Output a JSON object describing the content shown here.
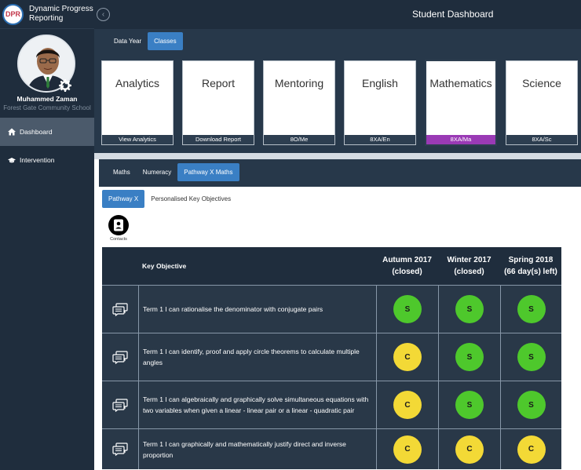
{
  "app": {
    "logo_text": "DPR",
    "name_line1": "Dynamic Progress",
    "name_line2": "Reporting"
  },
  "header": {
    "title": "Student Dashboard",
    "collapse_icon": "chevron-left-icon"
  },
  "profile": {
    "name": "Muhammed Zaman",
    "school": "Forest Gate Community School"
  },
  "sidebar": {
    "items": [
      {
        "label": "Dashboard",
        "icon": "home-icon",
        "active": true
      },
      {
        "label": "Intervention",
        "icon": "graduation-cap-icon",
        "active": false
      }
    ]
  },
  "year_tabs": [
    {
      "label": "Data Year",
      "active": false
    },
    {
      "label": "Classes",
      "active": true
    }
  ],
  "class_cards": [
    {
      "subject": "Analytics",
      "footer": "View Analytics",
      "active": false
    },
    {
      "subject": "Report",
      "footer": "Download Report",
      "active": false
    },
    {
      "subject": "Mentoring",
      "footer": "8O/Me",
      "active": false
    },
    {
      "subject": "English",
      "footer": "8XA/En",
      "active": false
    },
    {
      "subject": "Mathematics",
      "footer": "8XA/Ma",
      "active": true
    },
    {
      "subject": "Science",
      "footer": "8XA/Sc",
      "active": false
    }
  ],
  "maths_tabs": [
    {
      "label": "Maths",
      "active": false
    },
    {
      "label": "Numeracy",
      "active": false
    },
    {
      "label": "Pathway X Maths",
      "active": true
    }
  ],
  "sub_tabs": [
    {
      "label": "Pathway X",
      "active": true
    },
    {
      "label": "Personalised Key Objectives",
      "active": false
    }
  ],
  "contacts": {
    "label": "Contacts",
    "icon": "contacts-icon"
  },
  "table": {
    "header": {
      "objective": "Key Objective",
      "terms": [
        {
          "line1": "Autumn 2017",
          "line2": "(closed)"
        },
        {
          "line1": "Winter 2017",
          "line2": "(closed)"
        },
        {
          "line1": "Spring 2018",
          "line2": "(66 day(s) left)"
        }
      ]
    },
    "rows": [
      {
        "text": "Term 1 I can rationalise the denominator with conjugate pairs",
        "grades": [
          "S",
          "S",
          "S"
        ]
      },
      {
        "text": "Term 1 I can identify, proof and apply circle theorems to calculate multiple angles",
        "grades": [
          "C",
          "S",
          "S"
        ]
      },
      {
        "text": "Term 1 I can algebraically and graphically solve simultaneous equations with two variables when given a linear - linear pair or a linear - quadratic pair",
        "grades": [
          "C",
          "S",
          "S"
        ]
      },
      {
        "text": "Term 1 I can graphically and mathematically justify direct and inverse proportion",
        "grades": [
          "C",
          "C",
          "C"
        ]
      }
    ]
  },
  "colors": {
    "grade_S": "#4ec82c",
    "grade_C": "#f3d936",
    "accent": "#3a7fc4",
    "active_card": "#9a3ab5"
  }
}
